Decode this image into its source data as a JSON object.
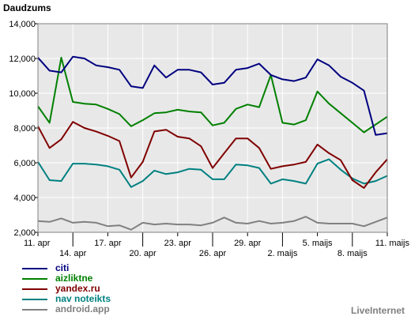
{
  "chart_data": {
    "type": "line",
    "title": "Daudzums",
    "ylim": [
      2000,
      14000
    ],
    "yticks": [
      2000,
      4000,
      6000,
      8000,
      10000,
      12000,
      14000
    ],
    "ytick_labels": [
      "2,000",
      "4,000",
      "6,000",
      "8,000",
      "10,000",
      "12,000",
      "14,000"
    ],
    "xlabels": [
      {
        "label": "11. apr",
        "index": 0,
        "row": 0
      },
      {
        "label": "14. apr",
        "index": 3,
        "row": 1
      },
      {
        "label": "17. apr",
        "index": 6,
        "row": 0
      },
      {
        "label": "20. apr",
        "index": 9,
        "row": 1
      },
      {
        "label": "23. apr",
        "index": 12,
        "row": 0
      },
      {
        "label": "26. apr",
        "index": 15,
        "row": 1
      },
      {
        "label": "29. apr",
        "index": 18,
        "row": 0
      },
      {
        "label": "2. maijs",
        "index": 21,
        "row": 1
      },
      {
        "label": "5. maijs",
        "index": 24,
        "row": 0
      },
      {
        "label": "8. maijs",
        "index": 27,
        "row": 1
      },
      {
        "label": "11. maijs",
        "index": 30,
        "row": 0
      }
    ],
    "grid": true,
    "series": [
      {
        "name": "citi",
        "color": "#000080",
        "values": [
          12050,
          11300,
          11200,
          12100,
          12000,
          11600,
          11500,
          11350,
          10400,
          10300,
          11600,
          10900,
          11350,
          11350,
          11200,
          10500,
          10600,
          11350,
          11450,
          11700,
          11050,
          10800,
          10700,
          10900,
          11950,
          11600,
          10950,
          10600,
          10150,
          7600,
          7700
        ]
      },
      {
        "name": "aizliktne",
        "color": "#008000",
        "values": [
          9250,
          8300,
          12050,
          9500,
          9400,
          9350,
          9100,
          8800,
          8100,
          8450,
          8850,
          8900,
          9050,
          8950,
          8900,
          8150,
          8300,
          9100,
          9350,
          9200,
          11050,
          8300,
          8200,
          8450,
          10100,
          9400,
          8850,
          8300,
          7750,
          8200,
          8650
        ]
      },
      {
        "name": "yandex.ru",
        "color": "#800000",
        "values": [
          8100,
          6850,
          7350,
          8350,
          8000,
          7800,
          7550,
          7250,
          5150,
          6050,
          7800,
          7900,
          7500,
          7400,
          6950,
          5700,
          6550,
          7400,
          7400,
          6850,
          5650,
          5800,
          5900,
          6050,
          7050,
          6550,
          6150,
          5000,
          4550,
          5450,
          6200
        ]
      },
      {
        "name": "nav noteikts",
        "color": "#008080",
        "values": [
          6050,
          5000,
          4950,
          5950,
          5950,
          5900,
          5800,
          5600,
          4600,
          4950,
          5550,
          5350,
          5450,
          5650,
          5600,
          5050,
          5050,
          5900,
          5850,
          5700,
          4800,
          5050,
          4950,
          4800,
          5950,
          6200,
          5600,
          5100,
          4800,
          4950,
          5250
        ]
      },
      {
        "name": "android.app",
        "color": "#808080",
        "values": [
          2650,
          2600,
          2800,
          2550,
          2600,
          2550,
          2350,
          2400,
          2150,
          2550,
          2450,
          2500,
          2450,
          2450,
          2400,
          2550,
          2850,
          2550,
          2500,
          2650,
          2500,
          2550,
          2650,
          2900,
          2550,
          2500,
          2500,
          2500,
          2350,
          2600,
          2850
        ]
      }
    ]
  },
  "brand": "LiveInternet"
}
